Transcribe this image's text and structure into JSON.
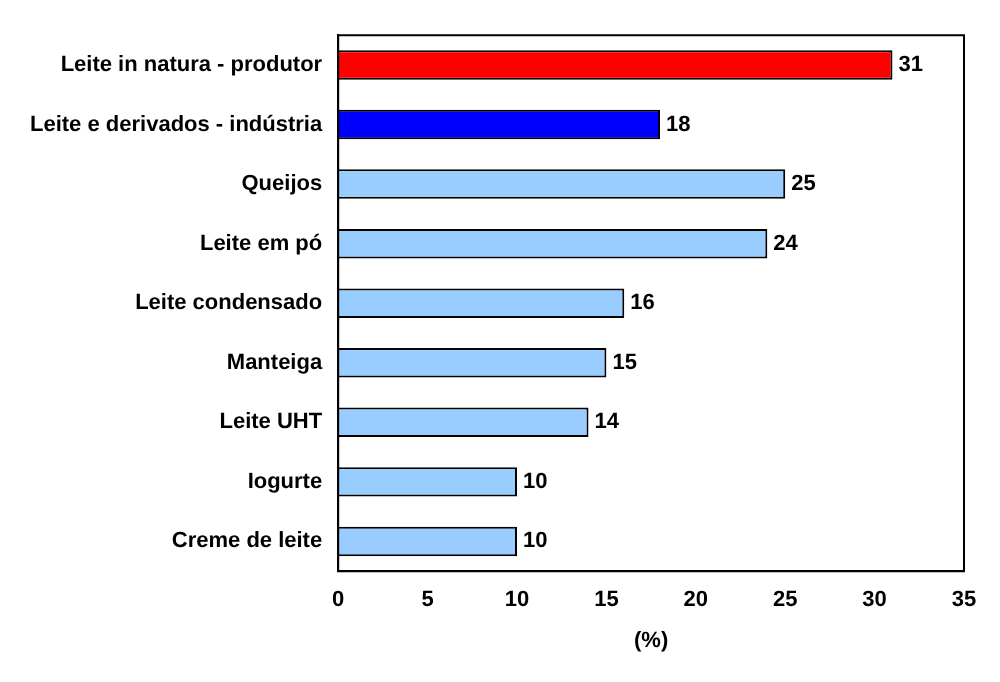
{
  "chart_data": {
    "type": "bar",
    "orientation": "horizontal",
    "xlabel": "(%)",
    "categories": [
      "Leite in natura - produtor",
      "Leite e derivados - indústria",
      "Queijos",
      "Leite em pó",
      "Leite condensado",
      "Manteiga",
      "Leite UHT",
      "Iogurte",
      "Creme de leite"
    ],
    "values": [
      31,
      18,
      25,
      24,
      16,
      15,
      14,
      10,
      10
    ],
    "colors": [
      "#ff0000",
      "#0000ff",
      "#99ccff",
      "#99ccff",
      "#99ccff",
      "#99ccff",
      "#99ccff",
      "#99ccff",
      "#99ccff"
    ],
    "xlim": [
      0,
      35
    ],
    "xticks": [
      0,
      5,
      10,
      15,
      20,
      25,
      30,
      35
    ],
    "data_labels": true,
    "grid": false,
    "legend": false
  }
}
